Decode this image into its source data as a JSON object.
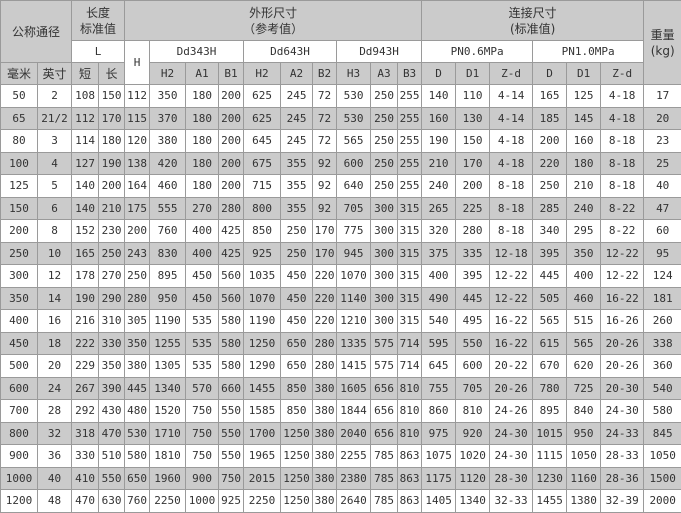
{
  "header": {
    "nominal": "公称通径",
    "length_std": [
      "长度",
      "标准值"
    ],
    "outline": [
      "外形尺寸",
      "（参考值）"
    ],
    "connect": [
      "连接尺寸",
      "(标准值)"
    ],
    "weight": [
      "重量",
      "(kg)"
    ],
    "L": "L",
    "H": "H",
    "models": [
      "Dd343H",
      "Dd643H",
      "Dd943H"
    ],
    "pn": [
      "PN0.6MPa",
      "PN1.0MPa"
    ],
    "sub": [
      "毫米",
      "英寸",
      "短",
      "长",
      "H2",
      "A1",
      "B1",
      "H2",
      "A2",
      "B2",
      "H3",
      "A3",
      "B3",
      "D",
      "D1",
      "Z-d",
      "D",
      "D1",
      "Z-d"
    ]
  },
  "rows": [
    [
      "50",
      "2",
      "108",
      "150",
      "112",
      "350",
      "180",
      "200",
      "625",
      "245",
      "72",
      "530",
      "250",
      "255",
      "140",
      "110",
      "4-14",
      "165",
      "125",
      "4-18",
      "17"
    ],
    [
      "65",
      "21/2",
      "112",
      "170",
      "115",
      "370",
      "180",
      "200",
      "625",
      "245",
      "72",
      "530",
      "250",
      "255",
      "160",
      "130",
      "4-14",
      "185",
      "145",
      "4-18",
      "20"
    ],
    [
      "80",
      "3",
      "114",
      "180",
      "120",
      "380",
      "180",
      "200",
      "645",
      "245",
      "72",
      "565",
      "250",
      "255",
      "190",
      "150",
      "4-18",
      "200",
      "160",
      "8-18",
      "23"
    ],
    [
      "100",
      "4",
      "127",
      "190",
      "138",
      "420",
      "180",
      "200",
      "675",
      "355",
      "92",
      "600",
      "250",
      "255",
      "210",
      "170",
      "4-18",
      "220",
      "180",
      "8-18",
      "25"
    ],
    [
      "125",
      "5",
      "140",
      "200",
      "164",
      "460",
      "180",
      "200",
      "715",
      "355",
      "92",
      "640",
      "250",
      "255",
      "240",
      "200",
      "8-18",
      "250",
      "210",
      "8-18",
      "40"
    ],
    [
      "150",
      "6",
      "140",
      "210",
      "175",
      "555",
      "270",
      "280",
      "800",
      "355",
      "92",
      "705",
      "300",
      "315",
      "265",
      "225",
      "8-18",
      "285",
      "240",
      "8-22",
      "47"
    ],
    [
      "200",
      "8",
      "152",
      "230",
      "200",
      "760",
      "400",
      "425",
      "850",
      "250",
      "170",
      "775",
      "300",
      "315",
      "320",
      "280",
      "8-18",
      "340",
      "295",
      "8-22",
      "60"
    ],
    [
      "250",
      "10",
      "165",
      "250",
      "243",
      "830",
      "400",
      "425",
      "925",
      "250",
      "170",
      "945",
      "300",
      "315",
      "375",
      "335",
      "12-18",
      "395",
      "350",
      "12-22",
      "95"
    ],
    [
      "300",
      "12",
      "178",
      "270",
      "250",
      "895",
      "450",
      "560",
      "1035",
      "450",
      "220",
      "1070",
      "300",
      "315",
      "400",
      "395",
      "12-22",
      "445",
      "400",
      "12-22",
      "124"
    ],
    [
      "350",
      "14",
      "190",
      "290",
      "280",
      "950",
      "450",
      "560",
      "1070",
      "450",
      "220",
      "1140",
      "300",
      "315",
      "490",
      "445",
      "12-22",
      "505",
      "460",
      "16-22",
      "181"
    ],
    [
      "400",
      "16",
      "216",
      "310",
      "305",
      "1190",
      "535",
      "580",
      "1190",
      "450",
      "220",
      "1210",
      "300",
      "315",
      "540",
      "495",
      "16-22",
      "565",
      "515",
      "16-26",
      "260"
    ],
    [
      "450",
      "18",
      "222",
      "330",
      "350",
      "1255",
      "535",
      "580",
      "1250",
      "650",
      "280",
      "1335",
      "575",
      "714",
      "595",
      "550",
      "16-22",
      "615",
      "565",
      "20-26",
      "338"
    ],
    [
      "500",
      "20",
      "229",
      "350",
      "380",
      "1305",
      "535",
      "580",
      "1290",
      "650",
      "280",
      "1415",
      "575",
      "714",
      "645",
      "600",
      "20-22",
      "670",
      "620",
      "20-26",
      "360"
    ],
    [
      "600",
      "24",
      "267",
      "390",
      "445",
      "1340",
      "570",
      "660",
      "1455",
      "850",
      "380",
      "1605",
      "656",
      "810",
      "755",
      "705",
      "20-26",
      "780",
      "725",
      "20-30",
      "540"
    ],
    [
      "700",
      "28",
      "292",
      "430",
      "480",
      "1520",
      "750",
      "550",
      "1585",
      "850",
      "380",
      "1844",
      "656",
      "810",
      "860",
      "810",
      "24-26",
      "895",
      "840",
      "24-30",
      "580"
    ],
    [
      "800",
      "32",
      "318",
      "470",
      "530",
      "1710",
      "750",
      "550",
      "1700",
      "1250",
      "380",
      "2040",
      "656",
      "810",
      "975",
      "920",
      "24-30",
      "1015",
      "950",
      "24-33",
      "845"
    ],
    [
      "900",
      "36",
      "330",
      "510",
      "580",
      "1810",
      "750",
      "550",
      "1965",
      "1250",
      "380",
      "2255",
      "785",
      "863",
      "1075",
      "1020",
      "24-30",
      "1115",
      "1050",
      "28-33",
      "1050"
    ],
    [
      "1000",
      "40",
      "410",
      "550",
      "650",
      "1960",
      "900",
      "750",
      "2015",
      "1250",
      "380",
      "2380",
      "785",
      "863",
      "1175",
      "1120",
      "28-30",
      "1230",
      "1160",
      "28-36",
      "1500"
    ],
    [
      "1200",
      "48",
      "470",
      "630",
      "760",
      "2250",
      "1000",
      "925",
      "2250",
      "1250",
      "380",
      "2640",
      "785",
      "863",
      "1405",
      "1340",
      "32-33",
      "1455",
      "1380",
      "32-39",
      "2000"
    ]
  ],
  "colors": {
    "header_gray": "#cbcbcb",
    "border": "#9a9a9a",
    "row_white": "#ffffff",
    "row_gray": "#cbcbcb"
  }
}
